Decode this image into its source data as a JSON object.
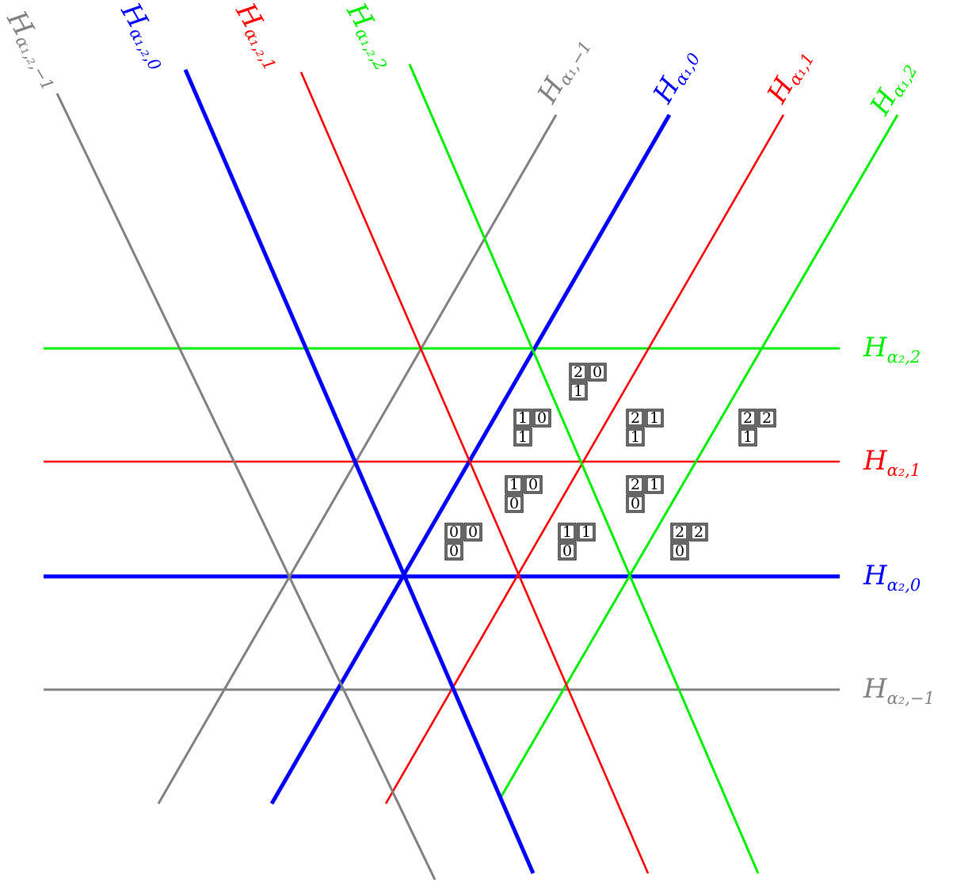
{
  "colors": {
    "minus_one": "#808080",
    "zero": "#0000ff",
    "one": "#ff0000",
    "two": "#00ee00"
  },
  "horizontal_hyperplanes": [
    {
      "name": "hyperplane-alpha2-2",
      "label": "H",
      "subscript": "α₂,2",
      "color_key": "two"
    },
    {
      "name": "hyperplane-alpha2-1",
      "label": "H",
      "subscript": "α₂,1",
      "color_key": "one"
    },
    {
      "name": "hyperplane-alpha2-0",
      "label": "H",
      "subscript": "α₂,0",
      "color_key": "zero"
    },
    {
      "name": "hyperplane-alpha2-minus1",
      "label": "H",
      "subscript": "α₂,−1",
      "color_key": "minus_one"
    }
  ],
  "rising_hyperplanes": [
    {
      "name": "hyperplane-alpha1-minus1",
      "label": "H",
      "subscript": "α₁,−1",
      "color_key": "minus_one"
    },
    {
      "name": "hyperplane-alpha1-0",
      "label": "H",
      "subscript": "α₁,0",
      "color_key": "zero"
    },
    {
      "name": "hyperplane-alpha1-1",
      "label": "H",
      "subscript": "α₁,1",
      "color_key": "one"
    },
    {
      "name": "hyperplane-alpha1-2",
      "label": "H",
      "subscript": "α₁,2",
      "color_key": "two"
    }
  ],
  "falling_hyperplanes": [
    {
      "name": "hyperplane-alpha12-minus1",
      "label": "H",
      "subscript": "α₁,₂,−1",
      "color_key": "minus_one"
    },
    {
      "name": "hyperplane-alpha12-0",
      "label": "H",
      "subscript": "α₁,₂,0",
      "color_key": "zero"
    },
    {
      "name": "hyperplane-alpha12-1",
      "label": "H",
      "subscript": "α₁,₂,1",
      "color_key": "one"
    },
    {
      "name": "hyperplane-alpha12-2",
      "label": "H",
      "subscript": "α₁,₂,2",
      "color_key": "two"
    }
  ],
  "tableaux": [
    {
      "name": "tableau-20-1",
      "top": [
        "2",
        "0"
      ],
      "bottom": "1"
    },
    {
      "name": "tableau-10-1",
      "top": [
        "1",
        "0"
      ],
      "bottom": "1"
    },
    {
      "name": "tableau-21-1",
      "top": [
        "2",
        "1"
      ],
      "bottom": "1"
    },
    {
      "name": "tableau-22-1",
      "top": [
        "2",
        "2"
      ],
      "bottom": "1"
    },
    {
      "name": "tableau-10-0",
      "top": [
        "1",
        "0"
      ],
      "bottom": "0"
    },
    {
      "name": "tableau-21-0",
      "top": [
        "2",
        "1"
      ],
      "bottom": "0"
    },
    {
      "name": "tableau-00-0",
      "top": [
        "0",
        "0"
      ],
      "bottom": "0"
    },
    {
      "name": "tableau-11-0",
      "top": [
        "1",
        "1"
      ],
      "bottom": "0"
    },
    {
      "name": "tableau-22-0",
      "top": [
        "2",
        "2"
      ],
      "bottom": "0"
    }
  ]
}
